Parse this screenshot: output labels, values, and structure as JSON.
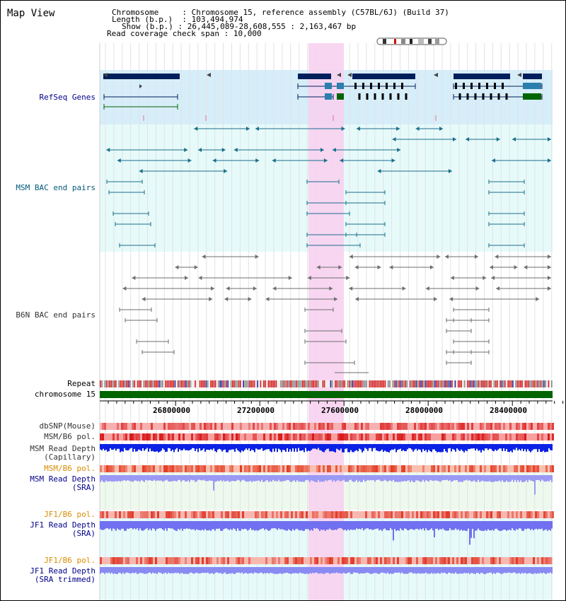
{
  "title": "Map View",
  "info": {
    "chromosome_label": "Chromosome",
    "chromosome_value": "Chromosome 15, reference assembly (C57BL/6J) (Build 37)",
    "length_label": "Length (b.p.)",
    "length_value": "103,494,974",
    "show_label": "Show (b.p.)",
    "show_value": "26,445,089-28,608,555 : 2,163,467 bp",
    "read_label": "Read coverage check span",
    "read_value": "10,000"
  },
  "tracks": {
    "refseq": "RefSeq Genes",
    "msm_bac": "MSM BAC end pairs",
    "b6n_bac": "B6N BAC end pairs",
    "repeat": "Repeat",
    "chromosome": "chromosome 15",
    "dbsnp": "dbSNP(Mouse)",
    "msm_b6_pol": "MSM/B6 pol.",
    "msm_depth_cap_1": "MSM Read Depth",
    "msm_depth_cap_2": "(Capillary)",
    "msm_b6_pol_2": "MSM/B6 pol.",
    "msm_depth_sra_1": "MSM Read Depth",
    "msm_depth_sra_2": "(SRA)",
    "jf1_pol": "JF1/B6 pol.",
    "jf1_depth_1": "JF1 Read Depth",
    "jf1_depth_2": "(SRA)",
    "jf1_pol_2": "JF1/B6 pol.",
    "jf1_trim_1": "JF1 Read Depth",
    "jf1_trim_2": "(SRA trimmed)"
  },
  "axis_ticks": [
    "26800000",
    "27200000",
    "27600000",
    "28000000",
    "28400000"
  ],
  "colors": {
    "highlight": "#f7d2f0",
    "refseq_bg": "#d6eefa",
    "bac_bg": "#e6fafa",
    "gene_dark": "#001f5b",
    "gene_mid": "#2a7fae",
    "gene_green": "#006400",
    "msm_bac": "#1a6f8a",
    "b6n_bac": "#6e6e6e",
    "repeat_red": "#d62020",
    "chrom_green": "#006400",
    "snp_red": "#e84a4a",
    "depth_blue": "#0b22e6",
    "depth_light": "#7070f0"
  }
}
